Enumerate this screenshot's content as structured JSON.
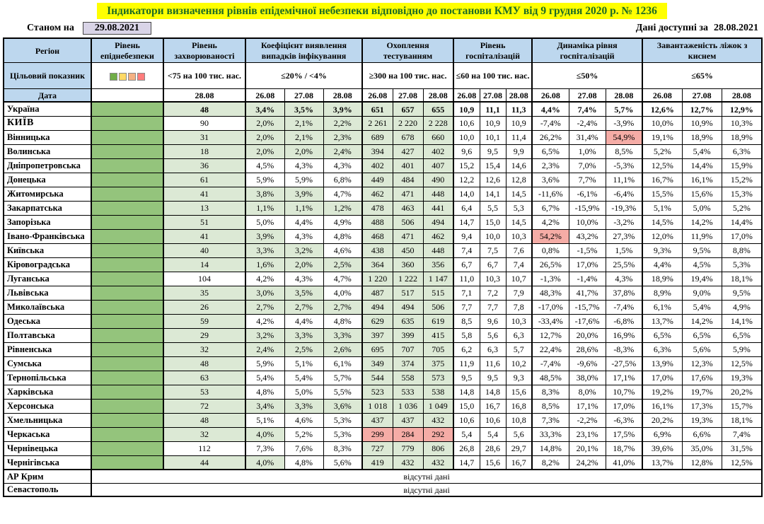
{
  "title": "Індикатори визначення рівнів епідемічної небезпеки відповідно до постанови КМУ від 9 грудня 2020 р. № 1236",
  "as_of_label": "Станом на",
  "as_of_date": "29.08.2021",
  "available_label": "Дані доступні за",
  "available_date": "28.08.2021",
  "colors": {
    "header_blue": "#BDD7EE",
    "green_fill": "#DCE9D5",
    "epid_green": "#94C47C",
    "alert_red": "#F5ACA6",
    "title_bg": "#FFFF00",
    "title_text": "#1E6B24",
    "date_box_bg": "#D9D4E7"
  },
  "legend_colors": [
    "#70AD47",
    "#FFD966",
    "#F4B183",
    "#FF7C7C"
  ],
  "header": {
    "region": "Регіон",
    "target_label": "Цільовий показник",
    "date_label": "Дата",
    "groups": [
      {
        "label": "Рівень епіднебезпеки",
        "target": "",
        "dates": []
      },
      {
        "label": "Рівень захворюваності",
        "target": "<75 на 100 тис. нас.",
        "dates": [
          "28.08"
        ]
      },
      {
        "label": "Коефіцієнт виявлення випадків інфікування",
        "target": "≤20% / <4%",
        "dates": [
          "26.08",
          "27.08",
          "28.08"
        ]
      },
      {
        "label": "Охоплення тестуванням",
        "target": "≥300 на 100 тис. нас.",
        "dates": [
          "26.08",
          "27.08",
          "28.08"
        ]
      },
      {
        "label": "Рівень госпіталізацій",
        "target": "≤60 на 100 тис. нас.",
        "dates": [
          "26.08",
          "27.08",
          "28.08"
        ]
      },
      {
        "label": "Динаміка рівня госпіталізацій",
        "target": "≤50%",
        "dates": [
          "26.08",
          "27.08",
          "28.08"
        ]
      },
      {
        "label": "Завантаженість ліжок з киснем",
        "target": "≤65%",
        "dates": [
          "26.08",
          "27.08",
          "28.08"
        ]
      }
    ]
  },
  "rows": [
    {
      "region": "Україна",
      "style": "bold-row",
      "inc": "48",
      "coef": [
        "3,4%",
        "3,5%",
        "3,9%"
      ],
      "test": [
        "651",
        "657",
        "655"
      ],
      "hosp": [
        "10,9",
        "11,1",
        "11,3"
      ],
      "dyn": [
        "4,4%",
        "7,4%",
        "5,7%"
      ],
      "beds": [
        "12,6%",
        "12,7%",
        "12,9%"
      ],
      "fill": {
        "inc": "g",
        "coef": "ggg",
        "test": "ggg",
        "hosp": "www",
        "dyn": "www",
        "beds": "www"
      }
    },
    {
      "region": "КИЇВ",
      "style": "kyiv-row",
      "inc": "90",
      "coef": [
        "2,0%",
        "2,1%",
        "2,2%"
      ],
      "test": [
        "2 261",
        "2 220",
        "2 228"
      ],
      "hosp": [
        "10,6",
        "10,9",
        "10,9"
      ],
      "dyn": [
        "-7,4%",
        "-2,4%",
        "-3,9%"
      ],
      "beds": [
        "10,0%",
        "10,9%",
        "10,3%"
      ],
      "fill": {
        "inc": "w",
        "coef": "ggg",
        "test": "ggg",
        "hosp": "www",
        "dyn": "www",
        "beds": "www"
      }
    },
    {
      "region": "Вінницька",
      "inc": "31",
      "coef": [
        "2,0%",
        "2,1%",
        "2,3%"
      ],
      "test": [
        "689",
        "678",
        "660"
      ],
      "hosp": [
        "10,0",
        "10,1",
        "11,4"
      ],
      "dyn": [
        "26,2%",
        "31,4%",
        "54,9%"
      ],
      "beds": [
        "19,1%",
        "18,9%",
        "18,9%"
      ],
      "fill": {
        "inc": "g",
        "coef": "ggg",
        "test": "ggg",
        "hosp": "www",
        "dyn": "wwr",
        "beds": "www"
      }
    },
    {
      "region": "Волинська",
      "inc": "18",
      "coef": [
        "2,0%",
        "2,0%",
        "2,4%"
      ],
      "test": [
        "394",
        "427",
        "402"
      ],
      "hosp": [
        "9,6",
        "9,5",
        "9,9"
      ],
      "dyn": [
        "6,5%",
        "1,0%",
        "8,5%"
      ],
      "beds": [
        "5,2%",
        "5,4%",
        "6,3%"
      ],
      "fill": {
        "inc": "g",
        "coef": "ggg",
        "test": "ggg",
        "hosp": "www",
        "dyn": "www",
        "beds": "www"
      }
    },
    {
      "region": "Дніпропетровська",
      "inc": "36",
      "coef": [
        "4,5%",
        "4,3%",
        "4,3%"
      ],
      "test": [
        "402",
        "401",
        "407"
      ],
      "hosp": [
        "15,2",
        "15,4",
        "14,6"
      ],
      "dyn": [
        "2,3%",
        "7,0%",
        "-5,3%"
      ],
      "beds": [
        "12,5%",
        "14,4%",
        "15,9%"
      ],
      "fill": {
        "inc": "g",
        "coef": "www",
        "test": "ggg",
        "hosp": "www",
        "dyn": "www",
        "beds": "www"
      }
    },
    {
      "region": "Донецька",
      "inc": "61",
      "coef": [
        "5,9%",
        "5,9%",
        "6,8%"
      ],
      "test": [
        "449",
        "484",
        "490"
      ],
      "hosp": [
        "12,2",
        "12,6",
        "12,8"
      ],
      "dyn": [
        "3,6%",
        "7,7%",
        "11,1%"
      ],
      "beds": [
        "16,7%",
        "16,1%",
        "15,2%"
      ],
      "fill": {
        "inc": "g",
        "coef": "www",
        "test": "ggg",
        "hosp": "www",
        "dyn": "www",
        "beds": "www"
      }
    },
    {
      "region": "Житомирська",
      "inc": "41",
      "coef": [
        "3,8%",
        "3,9%",
        "4,7%"
      ],
      "test": [
        "462",
        "471",
        "448"
      ],
      "hosp": [
        "14,0",
        "14,1",
        "14,5"
      ],
      "dyn": [
        "-11,6%",
        "-6,1%",
        "-6,4%"
      ],
      "beds": [
        "15,5%",
        "15,6%",
        "15,3%"
      ],
      "fill": {
        "inc": "g",
        "coef": "ggw",
        "test": "ggg",
        "hosp": "www",
        "dyn": "www",
        "beds": "www"
      }
    },
    {
      "region": "Закарпатська",
      "inc": "13",
      "coef": [
        "1,1%",
        "1,1%",
        "1,2%"
      ],
      "test": [
        "478",
        "463",
        "441"
      ],
      "hosp": [
        "6,4",
        "5,5",
        "5,3"
      ],
      "dyn": [
        "6,7%",
        "-15,9%",
        "-19,3%"
      ],
      "beds": [
        "5,1%",
        "5,0%",
        "5,2%"
      ],
      "fill": {
        "inc": "g",
        "coef": "ggg",
        "test": "ggg",
        "hosp": "www",
        "dyn": "www",
        "beds": "www"
      }
    },
    {
      "region": "Запорізька",
      "inc": "51",
      "coef": [
        "5,0%",
        "4,4%",
        "4,9%"
      ],
      "test": [
        "488",
        "506",
        "494"
      ],
      "hosp": [
        "14,7",
        "15,0",
        "14,5"
      ],
      "dyn": [
        "4,2%",
        "10,0%",
        "-3,2%"
      ],
      "beds": [
        "14,5%",
        "14,2%",
        "14,4%"
      ],
      "fill": {
        "inc": "g",
        "coef": "www",
        "test": "ggg",
        "hosp": "www",
        "dyn": "www",
        "beds": "www"
      }
    },
    {
      "region": "Івано-Франківська",
      "inc": "41",
      "coef": [
        "3,9%",
        "4,3%",
        "4,8%"
      ],
      "test": [
        "468",
        "471",
        "462"
      ],
      "hosp": [
        "9,4",
        "10,0",
        "10,3"
      ],
      "dyn": [
        "54,2%",
        "43,2%",
        "27,3%"
      ],
      "beds": [
        "12,0%",
        "11,9%",
        "17,0%"
      ],
      "fill": {
        "inc": "g",
        "coef": "gww",
        "test": "ggg",
        "hosp": "www",
        "dyn": "rww",
        "beds": "www"
      }
    },
    {
      "region": "Київська",
      "inc": "40",
      "coef": [
        "3,3%",
        "3,2%",
        "4,6%"
      ],
      "test": [
        "438",
        "450",
        "448"
      ],
      "hosp": [
        "7,4",
        "7,5",
        "7,6"
      ],
      "dyn": [
        "0,8%",
        "-1,5%",
        "1,5%"
      ],
      "beds": [
        "9,3%",
        "9,5%",
        "8,8%"
      ],
      "fill": {
        "inc": "g",
        "coef": "ggw",
        "test": "ggg",
        "hosp": "www",
        "dyn": "www",
        "beds": "www"
      }
    },
    {
      "region": "Кіровоградська",
      "inc": "14",
      "coef": [
        "1,6%",
        "2,0%",
        "2,5%"
      ],
      "test": [
        "364",
        "360",
        "356"
      ],
      "hosp": [
        "6,7",
        "6,7",
        "7,4"
      ],
      "dyn": [
        "26,5%",
        "17,0%",
        "25,5%"
      ],
      "beds": [
        "4,4%",
        "4,5%",
        "5,3%"
      ],
      "fill": {
        "inc": "g",
        "coef": "ggg",
        "test": "ggg",
        "hosp": "www",
        "dyn": "www",
        "beds": "www"
      }
    },
    {
      "region": "Луганська",
      "inc": "104",
      "coef": [
        "4,2%",
        "4,3%",
        "4,7%"
      ],
      "test": [
        "1 220",
        "1 222",
        "1 147"
      ],
      "hosp": [
        "11,0",
        "10,3",
        "10,7"
      ],
      "dyn": [
        "-1,3%",
        "-1,4%",
        "4,3%"
      ],
      "beds": [
        "18,9%",
        "19,4%",
        "18,1%"
      ],
      "fill": {
        "inc": "w",
        "coef": "www",
        "test": "ggg",
        "hosp": "www",
        "dyn": "www",
        "beds": "www"
      }
    },
    {
      "region": "Львівська",
      "inc": "35",
      "coef": [
        "3,0%",
        "3,5%",
        "4,0%"
      ],
      "test": [
        "487",
        "517",
        "515"
      ],
      "hosp": [
        "7,1",
        "7,2",
        "7,9"
      ],
      "dyn": [
        "48,3%",
        "41,7%",
        "37,8%"
      ],
      "beds": [
        "8,9%",
        "9,0%",
        "9,5%"
      ],
      "fill": {
        "inc": "g",
        "coef": "ggw",
        "test": "ggg",
        "hosp": "www",
        "dyn": "www",
        "beds": "www"
      }
    },
    {
      "region": "Миколаївська",
      "inc": "26",
      "coef": [
        "2,7%",
        "2,7%",
        "2,7%"
      ],
      "test": [
        "494",
        "494",
        "506"
      ],
      "hosp": [
        "7,7",
        "7,7",
        "7,8"
      ],
      "dyn": [
        "-17,0%",
        "-15,7%",
        "-7,4%"
      ],
      "beds": [
        "6,1%",
        "5,4%",
        "4,9%"
      ],
      "fill": {
        "inc": "g",
        "coef": "ggg",
        "test": "ggg",
        "hosp": "www",
        "dyn": "www",
        "beds": "www"
      }
    },
    {
      "region": "Одеська",
      "inc": "59",
      "coef": [
        "4,2%",
        "4,4%",
        "4,8%"
      ],
      "test": [
        "629",
        "635",
        "619"
      ],
      "hosp": [
        "8,5",
        "9,6",
        "10,3"
      ],
      "dyn": [
        "-33,4%",
        "-17,6%",
        "-6,8%"
      ],
      "beds": [
        "13,7%",
        "14,2%",
        "14,1%"
      ],
      "fill": {
        "inc": "g",
        "coef": "www",
        "test": "ggg",
        "hosp": "www",
        "dyn": "www",
        "beds": "www"
      }
    },
    {
      "region": "Полтавська",
      "inc": "29",
      "coef": [
        "3,2%",
        "3,3%",
        "3,3%"
      ],
      "test": [
        "397",
        "399",
        "415"
      ],
      "hosp": [
        "5,8",
        "5,6",
        "6,3"
      ],
      "dyn": [
        "12,7%",
        "20,0%",
        "16,9%"
      ],
      "beds": [
        "6,5%",
        "6,5%",
        "6,5%"
      ],
      "fill": {
        "inc": "g",
        "coef": "ggg",
        "test": "ggg",
        "hosp": "www",
        "dyn": "www",
        "beds": "www"
      }
    },
    {
      "region": "Рівненська",
      "inc": "32",
      "coef": [
        "2,4%",
        "2,5%",
        "2,6%"
      ],
      "test": [
        "695",
        "707",
        "705"
      ],
      "hosp": [
        "6,2",
        "6,3",
        "5,7"
      ],
      "dyn": [
        "22,4%",
        "28,6%",
        "-8,3%"
      ],
      "beds": [
        "6,3%",
        "5,6%",
        "5,9%"
      ],
      "fill": {
        "inc": "g",
        "coef": "ggg",
        "test": "ggg",
        "hosp": "www",
        "dyn": "www",
        "beds": "www"
      }
    },
    {
      "region": "Сумська",
      "inc": "48",
      "coef": [
        "5,9%",
        "5,1%",
        "6,1%"
      ],
      "test": [
        "349",
        "374",
        "375"
      ],
      "hosp": [
        "11,9",
        "11,6",
        "10,2"
      ],
      "dyn": [
        "-7,4%",
        "-9,6%",
        "-27,5%"
      ],
      "beds": [
        "13,9%",
        "12,3%",
        "12,5%"
      ],
      "fill": {
        "inc": "g",
        "coef": "www",
        "test": "ggg",
        "hosp": "www",
        "dyn": "www",
        "beds": "www"
      }
    },
    {
      "region": "Тернопільська",
      "inc": "63",
      "coef": [
        "5,4%",
        "5,4%",
        "5,7%"
      ],
      "test": [
        "544",
        "558",
        "573"
      ],
      "hosp": [
        "9,5",
        "9,5",
        "9,3"
      ],
      "dyn": [
        "48,5%",
        "38,0%",
        "17,1%"
      ],
      "beds": [
        "17,0%",
        "17,6%",
        "19,3%"
      ],
      "fill": {
        "inc": "g",
        "coef": "www",
        "test": "ggg",
        "hosp": "www",
        "dyn": "www",
        "beds": "www"
      }
    },
    {
      "region": "Харківська",
      "inc": "53",
      "coef": [
        "4,8%",
        "5,0%",
        "5,5%"
      ],
      "test": [
        "523",
        "533",
        "538"
      ],
      "hosp": [
        "14,8",
        "14,8",
        "15,6"
      ],
      "dyn": [
        "8,3%",
        "8,0%",
        "10,7%"
      ],
      "beds": [
        "19,2%",
        "19,7%",
        "20,2%"
      ],
      "fill": {
        "inc": "g",
        "coef": "www",
        "test": "ggg",
        "hosp": "www",
        "dyn": "www",
        "beds": "www"
      }
    },
    {
      "region": "Херсонська",
      "inc": "72",
      "coef": [
        "3,4%",
        "3,3%",
        "3,6%"
      ],
      "test": [
        "1 018",
        "1 036",
        "1 049"
      ],
      "hosp": [
        "15,0",
        "16,7",
        "16,8"
      ],
      "dyn": [
        "8,5%",
        "17,1%",
        "17,0%"
      ],
      "beds": [
        "16,1%",
        "17,3%",
        "15,7%"
      ],
      "fill": {
        "inc": "g",
        "coef": "ggg",
        "test": "ggg",
        "hosp": "www",
        "dyn": "www",
        "beds": "www"
      }
    },
    {
      "region": "Хмельницька",
      "inc": "48",
      "coef": [
        "5,1%",
        "4,6%",
        "5,3%"
      ],
      "test": [
        "437",
        "437",
        "432"
      ],
      "hosp": [
        "10,6",
        "10,6",
        "10,8"
      ],
      "dyn": [
        "7,3%",
        "-2,2%",
        "-6,3%"
      ],
      "beds": [
        "20,2%",
        "19,3%",
        "18,1%"
      ],
      "fill": {
        "inc": "g",
        "coef": "www",
        "test": "ggg",
        "hosp": "www",
        "dyn": "www",
        "beds": "www"
      }
    },
    {
      "region": "Черкаська",
      "inc": "32",
      "coef": [
        "4,0%",
        "5,2%",
        "5,3%"
      ],
      "test": [
        "299",
        "284",
        "292"
      ],
      "hosp": [
        "5,4",
        "5,4",
        "5,6"
      ],
      "dyn": [
        "33,3%",
        "23,1%",
        "17,5%"
      ],
      "beds": [
        "6,9%",
        "6,6%",
        "7,4%"
      ],
      "fill": {
        "inc": "g",
        "coef": "gww",
        "test": "rrr",
        "hosp": "www",
        "dyn": "www",
        "beds": "www"
      }
    },
    {
      "region": "Чернівецька",
      "inc": "112",
      "coef": [
        "7,3%",
        "7,6%",
        "8,3%"
      ],
      "test": [
        "727",
        "779",
        "806"
      ],
      "hosp": [
        "26,8",
        "28,6",
        "29,7"
      ],
      "dyn": [
        "14,8%",
        "20,1%",
        "18,7%"
      ],
      "beds": [
        "39,6%",
        "35,0%",
        "31,5%"
      ],
      "fill": {
        "inc": "w",
        "coef": "www",
        "test": "ggg",
        "hosp": "www",
        "dyn": "www",
        "beds": "www"
      }
    },
    {
      "region": "Чернігівська",
      "inc": "44",
      "coef": [
        "4,0%",
        "4,8%",
        "5,6%"
      ],
      "test": [
        "419",
        "432",
        "432"
      ],
      "hosp": [
        "14,7",
        "15,6",
        "16,7"
      ],
      "dyn": [
        "8,2%",
        "24,2%",
        "41,0%"
      ],
      "beds": [
        "13,7%",
        "12,8%",
        "12,5%"
      ],
      "fill": {
        "inc": "g",
        "coef": "gww",
        "test": "ggg",
        "hosp": "www",
        "dyn": "www",
        "beds": "www"
      }
    }
  ],
  "no_data_rows": [
    {
      "region": "АР Крим",
      "text": "відсутні дані"
    },
    {
      "region": "Севастополь",
      "text": "відсутні дані"
    }
  ]
}
